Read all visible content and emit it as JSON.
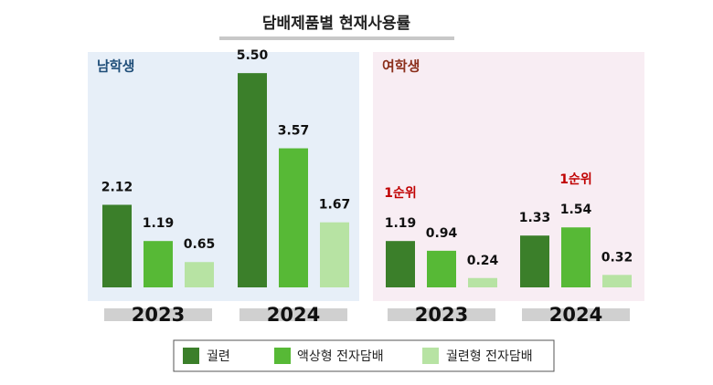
{
  "title": "담배제품별 현재사용률",
  "chart_data": [
    {
      "type": "bar",
      "title": "남학생",
      "categories": [
        "2023",
        "2024"
      ],
      "series": [
        {
          "name": "궐련",
          "color": "#3b7f2a",
          "values": [
            2.12,
            5.5
          ],
          "value_labels": [
            "2.12",
            "5.50"
          ]
        },
        {
          "name": "액상형 전자담배",
          "color": "#57b936",
          "values": [
            1.19,
            3.57
          ]
        },
        {
          "name": "궐련형 전자담배",
          "color": "#b7e3a3",
          "values": [
            0.65,
            1.67
          ]
        }
      ]
    },
    {
      "type": "bar",
      "title": "여학생",
      "categories": [
        "2023",
        "2024"
      ],
      "series": [
        {
          "name": "궐련",
          "color": "#3b7f2a",
          "values": [
            1.19,
            1.33
          ]
        },
        {
          "name": "액상형 전자담배",
          "color": "#57b936",
          "values": [
            0.94,
            1.54
          ]
        },
        {
          "name": "궐련형 전자담배",
          "color": "#b7e3a3",
          "values": [
            0.24,
            0.32
          ]
        }
      ],
      "annotations": [
        {
          "text": "1순위",
          "x": "2023"
        },
        {
          "text": "1순위",
          "x": "2024"
        }
      ]
    }
  ]
}
